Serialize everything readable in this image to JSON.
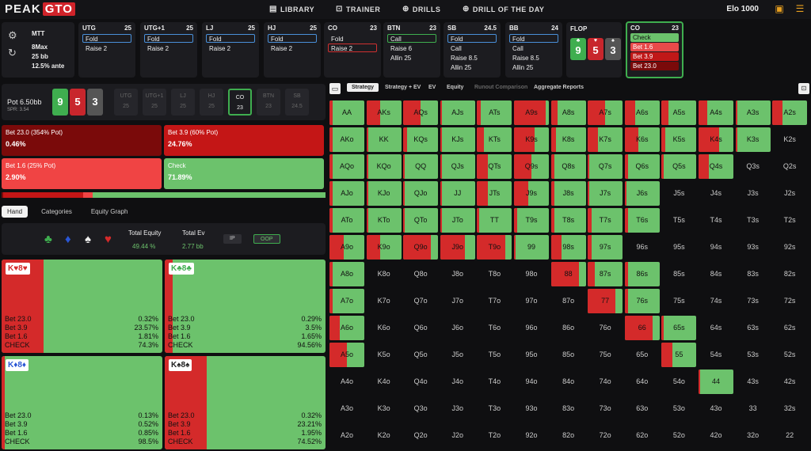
{
  "app": {
    "logo_a": "PEAK",
    "logo_b": "GTO",
    "nav": [
      "LIBRARY",
      "TRAINER",
      "DRILLS",
      "DRILL OF THE DAY"
    ],
    "elo": "Elo 1000"
  },
  "setup": {
    "format": "MTT",
    "table": "8Max",
    "stack": "25 bb",
    "ante": "12.5% ante"
  },
  "positions": [
    {
      "name": "UTG",
      "stack": "25",
      "actions": [
        "Fold",
        "Raise 2"
      ],
      "sel": 0
    },
    {
      "name": "UTG+1",
      "stack": "25",
      "actions": [
        "Fold",
        "Raise 2"
      ],
      "sel": 0
    },
    {
      "name": "LJ",
      "stack": "25",
      "actions": [
        "Fold",
        "Raise 2"
      ],
      "sel": 0
    },
    {
      "name": "HJ",
      "stack": "25",
      "actions": [
        "Fold",
        "Raise 2"
      ],
      "sel": 0
    },
    {
      "name": "CO",
      "stack": "23",
      "actions": [
        "Fold",
        "Raise 2"
      ],
      "sel": 1
    },
    {
      "name": "BTN",
      "stack": "23",
      "actions": [
        "Call",
        "Raise 6",
        "Allin 25"
      ],
      "sel": 0
    },
    {
      "name": "SB",
      "stack": "24.5",
      "actions": [
        "Fold",
        "Call",
        "Raise 8.5",
        "Allin 25"
      ],
      "sel": 0
    },
    {
      "name": "BB",
      "stack": "24",
      "actions": [
        "Fold",
        "Call",
        "Raise 8.5",
        "Allin 25"
      ],
      "sel": 0
    }
  ],
  "flop": {
    "label": "FLOP",
    "cards": [
      {
        "rank": "9",
        "suit": "♣",
        "color": "#3fae4f"
      },
      {
        "rank": "5",
        "suit": "♥",
        "color": "#c8262c"
      },
      {
        "rank": "3",
        "suit": "♠",
        "color": "#555"
      }
    ]
  },
  "current": {
    "name": "CO",
    "stack": "23",
    "actions": [
      {
        "l": "Check",
        "c": "#6cc26c"
      },
      {
        "l": "Bet 1.6",
        "c": "#e84a4a"
      },
      {
        "l": "Bet 3.9",
        "c": "#c01818"
      },
      {
        "l": "Bet 23.0",
        "c": "#7a0a0a"
      }
    ]
  },
  "pot": {
    "label": "Pot",
    "value": "6.50bb",
    "spr": "SPR: 3.54",
    "cards": [
      "9",
      "5",
      "3"
    ],
    "seats": [
      {
        "n": "UTG",
        "s": "25"
      },
      {
        "n": "UTG+1",
        "s": "25"
      },
      {
        "n": "LJ",
        "s": "25"
      },
      {
        "n": "HJ",
        "s": "25"
      },
      {
        "n": "CO",
        "s": "23"
      },
      {
        "n": "BTN",
        "s": "23"
      },
      {
        "n": "SB",
        "s": "24.5"
      }
    ]
  },
  "bets": [
    {
      "label": "Bet 23.0 (354% Pot)",
      "value": "0.46%",
      "color": "#7a0a0a"
    },
    {
      "label": "Bet 3.9 (60% Pot)",
      "value": "24.76%",
      "color": "#c41616"
    },
    {
      "label": "Bet 1.6 (25% Pot)",
      "value": "2.90%",
      "color": "#f04444"
    },
    {
      "label": "Check",
      "value": "71.89%",
      "color": "#6cc26c"
    }
  ],
  "tabs": [
    "Hand",
    "Categories",
    "Equity Graph"
  ],
  "equity": {
    "eq_label": "Total Equity",
    "eq_value": "49.44 %",
    "ev_label": "Total Ev",
    "ev_value": "2.77 bb",
    "ip": "IP",
    "oop": "OOP"
  },
  "combos": [
    {
      "card": "K♥8♥",
      "red": 0.26,
      "rows": [
        [
          "Bet 23.0",
          "0.32%"
        ],
        [
          "Bet 3.9",
          "23.57%"
        ],
        [
          "Bet 1.6",
          "1.81%"
        ],
        [
          "CHECK",
          "74.3%"
        ]
      ]
    },
    {
      "card": "K♣8♣",
      "red": 0.05,
      "rows": [
        [
          "Bet 23.0",
          "0.29%"
        ],
        [
          "Bet 3.9",
          "3.5%"
        ],
        [
          "Bet 1.6",
          "1.65%"
        ],
        [
          "CHECK",
          "94.56%"
        ]
      ]
    },
    {
      "card": "K♦8♦",
      "red": 0.02,
      "rows": [
        [
          "Bet 23.0",
          "0.13%"
        ],
        [
          "Bet 3.9",
          "0.52%"
        ],
        [
          "Bet 1.6",
          "0.85%"
        ],
        [
          "CHECK",
          "98.5%"
        ]
      ]
    },
    {
      "card": "K♠8♠",
      "red": 0.26,
      "rows": [
        [
          "Bet 23.0",
          "0.32%"
        ],
        [
          "Bet 3.9",
          "23.21%"
        ],
        [
          "Bet 1.6",
          "1.95%"
        ],
        [
          "CHECK",
          "74.52%"
        ]
      ]
    }
  ],
  "toolbar": [
    "Strategy",
    "Strategy + EV",
    "EV",
    "Equity",
    "Runout Comparison",
    "Aggregate Reports"
  ],
  "ranks": [
    "A",
    "K",
    "Q",
    "J",
    "T",
    "9",
    "8",
    "7",
    "6",
    "5",
    "4",
    "3",
    "2"
  ],
  "bet_frac": [
    [
      0.1,
      0.4,
      0.5,
      0.05,
      0.1,
      0.9,
      0.2,
      0.5,
      0.3,
      0.2,
      0.25,
      0.05,
      0.3
    ],
    [
      0.1,
      0.05,
      0.1,
      0.05,
      0.2,
      0.6,
      0.15,
      0.3,
      0.4,
      0.1,
      0.6,
      0.05,
      -1
    ],
    [
      0.1,
      0.05,
      0.05,
      0.05,
      0.3,
      0.5,
      0.1,
      0.05,
      0.1,
      0.05,
      0.3,
      -1,
      -1
    ],
    [
      0.1,
      0.05,
      0.05,
      0.05,
      0.3,
      0.4,
      0.1,
      0.05,
      0.05,
      -1,
      -1,
      -1,
      -1
    ],
    [
      0.1,
      0.05,
      0.05,
      0.05,
      0.05,
      0.1,
      0.1,
      0.1,
      0.1,
      -1,
      -1,
      -1,
      -1
    ],
    [
      0.4,
      0.4,
      0.8,
      0.7,
      0.8,
      0.05,
      0.3,
      0.1,
      -1,
      -1,
      -1,
      -1,
      -1
    ],
    [
      0.1,
      -1,
      -1,
      -1,
      -1,
      -1,
      0.8,
      0.2,
      0.1,
      -1,
      -1,
      -1,
      -1
    ],
    [
      0.1,
      -1,
      -1,
      -1,
      -1,
      -1,
      -1,
      0.8,
      0.1,
      -1,
      -1,
      -1,
      -1
    ],
    [
      0.3,
      -1,
      -1,
      -1,
      -1,
      -1,
      -1,
      -1,
      0.8,
      0.05,
      -1,
      -1,
      -1
    ],
    [
      0.5,
      -1,
      -1,
      -1,
      -1,
      -1,
      -1,
      -1,
      -1,
      0.3,
      -1,
      -1,
      -1
    ],
    [
      -1,
      -1,
      -1,
      -1,
      -1,
      -1,
      -1,
      -1,
      -1,
      -1,
      0.05,
      -1,
      -1
    ],
    [
      -1,
      -1,
      -1,
      -1,
      -1,
      -1,
      -1,
      -1,
      -1,
      -1,
      -1,
      -1,
      -1
    ],
    [
      -1,
      -1,
      -1,
      -1,
      -1,
      -1,
      -1,
      -1,
      -1,
      -1,
      -1,
      -1,
      -1
    ]
  ]
}
